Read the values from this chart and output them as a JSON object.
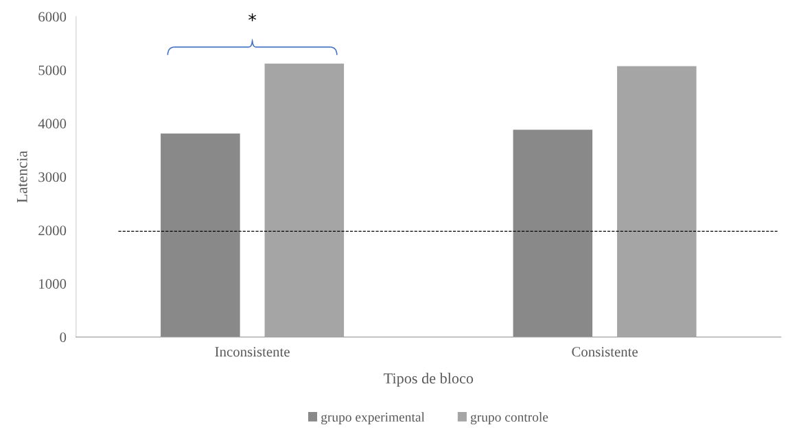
{
  "chart_data": {
    "type": "bar",
    "xlabel": "Tipos de bloco",
    "ylabel": "Latencia",
    "categories": [
      "Inconsistente",
      "Consistente"
    ],
    "series": [
      {
        "name": "grupo experimental",
        "color": "#898989",
        "values": [
          3810,
          3880
        ]
      },
      {
        "name": "grupo controle",
        "color": "#a5a5a5",
        "values": [
          5120,
          5070
        ]
      }
    ],
    "ylim": [
      0,
      6000
    ],
    "yticks": [
      0,
      1000,
      2000,
      3000,
      4000,
      5000,
      6000
    ],
    "ref_lines": [
      {
        "axis": "y",
        "value": 1980,
        "color": "#000000",
        "line_style": "dashed"
      }
    ],
    "annotations": [
      "*"
    ],
    "grid": false,
    "legend": "bottom"
  }
}
